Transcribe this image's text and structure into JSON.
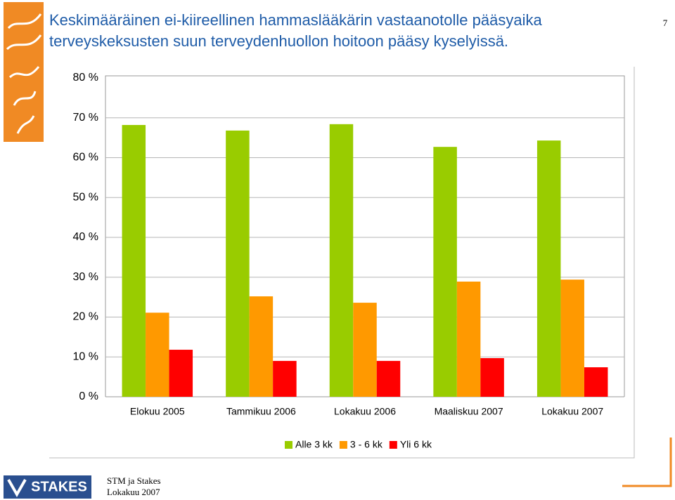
{
  "slide": {
    "title_lines": [
      "Keskimääräinen ei-kiireellinen hammaslääkärin vastaanotolle pääsyaika",
      "terveyskeksusten suun terveydenhuollon hoitoon pääsy kyselyissä."
    ],
    "page_number": "7",
    "footer_lines": [
      "STM ja Stakes",
      "Lokakuu 2007"
    ],
    "logo_text": "STAKES"
  },
  "chart_data": {
    "type": "bar",
    "categories": [
      "Elokuu 2005",
      "Tammikuu 2006",
      "Lokakuu 2006",
      "Maaliskuu 2007",
      "Lokakuu 2007"
    ],
    "series": [
      {
        "name": "Alle 3 kk",
        "color": "#99cc00",
        "values": [
          68.2,
          66.8,
          68.4,
          62.7,
          64.3
        ]
      },
      {
        "name": "3 - 6 kk",
        "color": "#ff9900",
        "values": [
          21.1,
          25.2,
          23.6,
          28.9,
          29.4
        ]
      },
      {
        "name": "Yli 6 kk",
        "color": "#ff0000",
        "values": [
          11.8,
          9.0,
          9.0,
          9.7,
          7.4
        ]
      }
    ],
    "ylim": [
      0,
      80
    ],
    "yticks": [
      {
        "value": 0,
        "label": "0 %"
      },
      {
        "value": 10,
        "label": "10 %"
      },
      {
        "value": 20,
        "label": "20 %"
      },
      {
        "value": 30,
        "label": "30 %"
      },
      {
        "value": 40,
        "label": "40 %"
      },
      {
        "value": 50,
        "label": "50 %"
      },
      {
        "value": 60,
        "label": "60 %"
      },
      {
        "value": 70,
        "label": "70 %"
      },
      {
        "value": 80,
        "label": "80 %"
      }
    ],
    "grid": true,
    "legend": "bottom"
  }
}
